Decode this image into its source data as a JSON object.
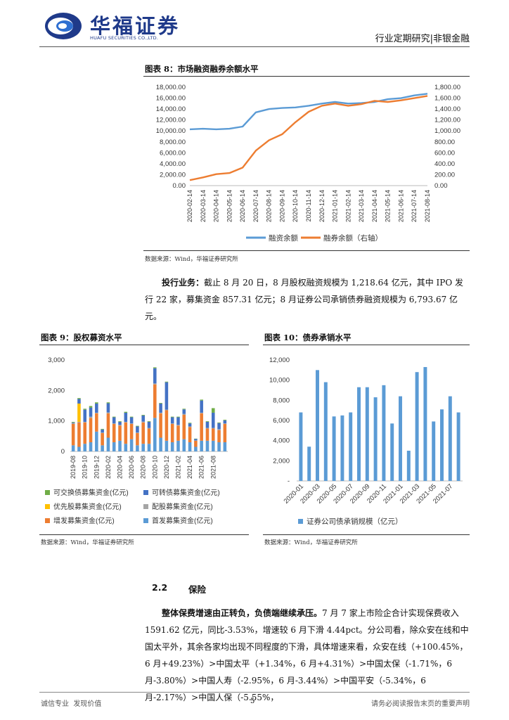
{
  "header": {
    "logo_zh": "华福证券",
    "logo_en": "HUAFU SECURITIES CO.,LTD.",
    "report_type": "行业定期研究|非银金融"
  },
  "fig8": {
    "title": "图表 8：市场融资融券余额水平",
    "source": "数据来源：Wind，华福证券研究所",
    "chart_data": {
      "type": "line",
      "x": [
        "2020-02-14",
        "2020-03-14",
        "2020-04-14",
        "2020-05-14",
        "2020-06-14",
        "2020-07-14",
        "2020-08-14",
        "2020-09-14",
        "2020-10-14",
        "2020-11-14",
        "2020-12-14",
        "2021-01-14",
        "2021-02-14",
        "2021-03-14",
        "2021-04-14",
        "2021-05-14",
        "2021-06-14",
        "2021-07-14",
        "2021-08-14"
      ],
      "y_left_ticks": [
        "18,000.00",
        "16,000.00",
        "14,000.00",
        "12,000.00",
        "10,000.00",
        "8,000.00",
        "6,000.00",
        "4,000.00",
        "2,000.00",
        "0.00"
      ],
      "y_right_ticks": [
        "1,800.00",
        "1,600.00",
        "1,400.00",
        "1,200.00",
        "1,000.00",
        "800.00",
        "600.00",
        "400.00",
        "200.00",
        "0.00"
      ],
      "ylim_left": [
        0,
        18000
      ],
      "ylim_right": [
        0,
        1800
      ],
      "series": [
        {
          "name": "融资余额",
          "axis": "left",
          "color": "#5b9bd5",
          "values": [
            10300,
            10400,
            10300,
            10400,
            10800,
            13400,
            14000,
            14200,
            14300,
            14600,
            15000,
            15300,
            15000,
            15100,
            15300,
            15800,
            16000,
            16500,
            16800
          ]
        },
        {
          "name": "融券余额（右轴）",
          "axis": "right",
          "color": "#ed7d31",
          "values": [
            100,
            150,
            210,
            230,
            330,
            640,
            830,
            940,
            1160,
            1350,
            1460,
            1500,
            1460,
            1490,
            1550,
            1530,
            1560,
            1600,
            1640
          ]
        }
      ]
    }
  },
  "para1": {
    "lead": "投行业务：",
    "text": "截止 8 月 20 日，8 月股权融资规模为 1,218.64 亿元，其中 IPO 发行 22 家，募集资金 857.31 亿元；8 月证券公司承销债券融资规模为 6,793.67 亿元。"
  },
  "fig9": {
    "title": "图表 9：股权募资水平",
    "source": "数据来源：Wind，华福证券研究所",
    "chart_data": {
      "type": "bar",
      "stacked": true,
      "x_ticks": [
        "2019-08",
        "2019-10",
        "2019-12",
        "2020-02",
        "2020-04",
        "2020-06",
        "2020-08",
        "2020-10",
        "2020-12",
        "2021-02",
        "2021-04",
        "2021-06",
        "2021-08"
      ],
      "y_ticks": [
        "3,000",
        "2,000",
        "1,000",
        "0"
      ],
      "ylim": [
        0,
        3000
      ],
      "legend": [
        "可交换债募集资金(亿元)",
        "可转债募集资金(亿元)",
        "优先股募集资金(亿元)",
        "配股募集资金(亿元)",
        "增发募集资金(亿元)",
        "首发募集资金(亿元)"
      ],
      "series": [
        {
          "name": "首发募集资金(亿元)",
          "color": "#5b9bd5",
          "values": [
            200,
            150,
            250,
            300,
            650,
            200,
            450,
            300,
            350,
            250,
            400,
            200,
            250,
            250,
            1100,
            450,
            350,
            300,
            350,
            400,
            300,
            150,
            350,
            350,
            350,
            300,
            300
          ]
        },
        {
          "name": "增发募集资金(亿元)",
          "color": "#ed7d31",
          "values": [
            700,
            800,
            700,
            800,
            600,
            400,
            800,
            600,
            500,
            700,
            500,
            400,
            700,
            500,
            1100,
            800,
            1000,
            600,
            500,
            800,
            500,
            200,
            900,
            400,
            400,
            400,
            600
          ]
        },
        {
          "name": "配股募集资金(亿元)",
          "color": "#a5a5a5",
          "values": [
            30,
            20,
            20,
            40,
            20,
            20,
            30,
            20,
            20,
            20,
            20,
            20,
            30,
            20,
            30,
            20,
            20,
            20,
            20,
            30,
            20,
            10,
            20,
            20,
            20,
            30,
            20
          ]
        },
        {
          "name": "优先股募集资金(亿元)",
          "color": "#ffc000",
          "values": [
            0,
            600,
            0,
            0,
            0,
            0,
            0,
            0,
            0,
            0,
            0,
            0,
            0,
            0,
            0,
            0,
            0,
            0,
            0,
            0,
            0,
            0,
            0,
            0,
            0,
            0,
            0
          ]
        },
        {
          "name": "可转债募集资金(亿元)",
          "color": "#4472c4",
          "values": [
            20,
            150,
            400,
            300,
            300,
            100,
            300,
            200,
            100,
            300,
            200,
            200,
            200,
            200,
            500,
            300,
            900,
            200,
            250,
            150,
            100,
            50,
            400,
            200,
            500,
            200,
            100
          ]
        },
        {
          "name": "可交换债募集资金(亿元)",
          "color": "#70ad47",
          "values": [
            20,
            30,
            30,
            50,
            40,
            20,
            30,
            20,
            20,
            30,
            20,
            20,
            20,
            20,
            30,
            20,
            20,
            20,
            20,
            20,
            20,
            10,
            30,
            20,
            150,
            20,
            20
          ]
        }
      ]
    }
  },
  "fig10": {
    "title": "图表 10：债券承销水平",
    "source": "数据来源：Wind，华福证券研究所",
    "chart_data": {
      "type": "bar",
      "x_ticks": [
        "2020-01",
        "2020-03",
        "2020-05",
        "2020-07",
        "2020-09",
        "2020-11",
        "2021-01",
        "2021-03",
        "2021-05",
        "2021-07"
      ],
      "y_ticks": [
        "12,000",
        "10,000",
        "8,000",
        "6,000",
        "4,000",
        "2,000",
        "-"
      ],
      "ylim": [
        0,
        12000
      ],
      "series": [
        {
          "name": "证券公司债承销规模（亿元）",
          "color": "#5b9bd5",
          "values": [
            6800,
            3400,
            11000,
            9800,
            6400,
            6500,
            6800,
            9300,
            9300,
            8300,
            9500,
            5700,
            8400,
            3000,
            10800,
            11300,
            5900,
            7100,
            8400,
            6800
          ]
        }
      ]
    }
  },
  "section": {
    "num": "2.2",
    "name": "保险"
  },
  "para2": {
    "lead": "整体保费增速由正转负，负债端继续承压。",
    "text": "7 月 7 家上市险企合计实现保费收入 1591.62 亿元，同比-3.53%，增速较 6 月下滑 4.44pct。分公司看，除众安在线和中国太平外，其余各家均出现不同程度的下滑，具体增速来看，众安在线（+100.45%，6 月+49.23%）>中国太平（+1.34%，6 月+4.31%）>中国太保（-1.71%，6 月-3.80%）>中国人寿（-2.95%，6 月-3.44%）>中国平安（-5.34%，6 月-2.17%）>中国人保（-5.55%，"
  },
  "footer": {
    "left": "诚信专业  发现价值",
    "page": "5",
    "right": "请务必阅读报告末页的重要声明"
  }
}
